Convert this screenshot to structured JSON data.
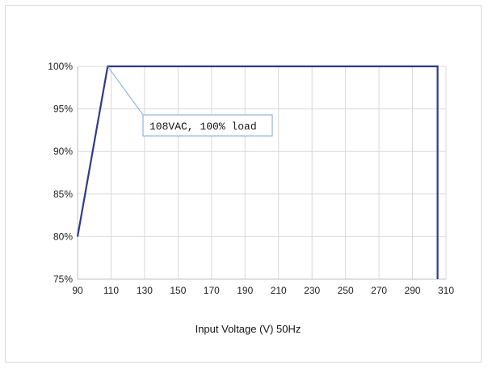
{
  "chart_data": {
    "type": "line",
    "xlabel": "Input Voltage (V) 50Hz",
    "ylabel": "",
    "x_ticks": [
      "90",
      "110",
      "130",
      "150",
      "170",
      "190",
      "210",
      "230",
      "250",
      "270",
      "290",
      "310"
    ],
    "y_ticks": [
      "75%",
      "80%",
      "85%",
      "90%",
      "95%",
      "100%"
    ],
    "xlim": [
      90,
      310
    ],
    "ylim": [
      75,
      100
    ],
    "grid": true,
    "series": [
      {
        "x": [
          90,
          108,
          305,
          305
        ],
        "y": [
          80,
          100,
          100,
          75
        ]
      }
    ],
    "annotations": [
      {
        "text": "108VAC, 100% load",
        "x": 108,
        "y": 100
      }
    ],
    "colors": {
      "line": "#2e3a8c",
      "grid": "#d9d9d9",
      "annotation_border": "#7ea6d8",
      "leader": "#7ea6d8"
    }
  }
}
